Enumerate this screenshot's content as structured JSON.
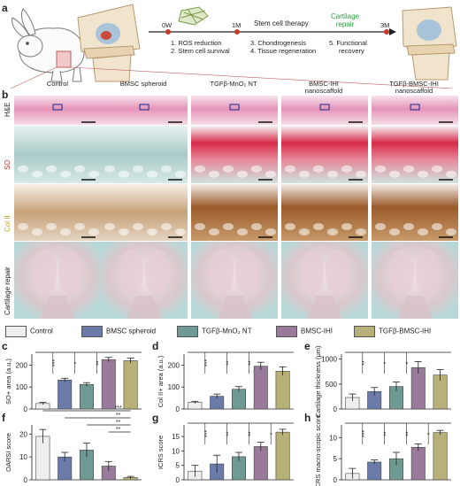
{
  "panels": {
    "a": "a",
    "b": "b",
    "c": "c",
    "d": "d",
    "e": "e",
    "f": "f",
    "g": "g",
    "h": "h"
  },
  "timeline": {
    "stem_cell_therapy": "Stem cell therapy",
    "cartilage_repair": "Cartilage\nrepair",
    "t0": "0W",
    "t1": "1M",
    "t3": "3M",
    "step1a": "1. ROS reduction",
    "step1b": "2. Stem cell survival",
    "step2a": "3. Chondrogenesis",
    "step2b": "4. Tissue regeneration",
    "step3a": "5. Functional",
    "step3b": "recovery",
    "accent_color": "#2a9d3a"
  },
  "columns": [
    "Control",
    "BMSC spheroid",
    "TGFβ-MnO₂ NT",
    "BMSC-IHI\nnanoscaffold",
    "TGFβ-BMSC-IHI\nnanoscaffold"
  ],
  "rows": [
    {
      "label": "H&E",
      "color": "#222222"
    },
    {
      "label": "SO",
      "color": "#d0302a"
    },
    {
      "label": "Col II",
      "color": "#c8a21a"
    },
    {
      "label": "Cartilage repair",
      "color": "#222222"
    }
  ],
  "legend": [
    {
      "label": "Control",
      "color": "#eeeeee"
    },
    {
      "label": "BMSC spheroid",
      "color": "#6b7aa8"
    },
    {
      "label": "TGFβ-MnO₂ NT",
      "color": "#6f9a94"
    },
    {
      "label": "BMSC-IHI",
      "color": "#9a7a9a"
    },
    {
      "label": "TGFβ-BMSC-IHI",
      "color": "#b7b078"
    }
  ],
  "chart_data": [
    {
      "panel": "c",
      "type": "bar",
      "ylabel": "SO+ area (a.u.)",
      "ylim": [
        0,
        250
      ],
      "yticks": [
        0,
        100,
        200
      ],
      "values": [
        25,
        132,
        112,
        225,
        220
      ],
      "errors": [
        5,
        8,
        8,
        10,
        12
      ],
      "sig": [
        {
          "from": 0,
          "to": 1,
          "label": "***"
        },
        {
          "from": 1,
          "to": 2,
          "label": "*"
        },
        {
          "from": 2,
          "to": 3,
          "label": "**"
        }
      ]
    },
    {
      "panel": "d",
      "type": "bar",
      "ylabel": "Col II+ area (a.u.)",
      "ylim": [
        0,
        250
      ],
      "yticks": [
        0,
        100,
        200
      ],
      "values": [
        30,
        58,
        90,
        195,
        172
      ],
      "errors": [
        5,
        10,
        12,
        18,
        20
      ],
      "sig": [
        {
          "from": 0,
          "to": 1,
          "label": "***"
        },
        {
          "from": 1,
          "to": 2,
          "label": "**"
        },
        {
          "from": 2,
          "to": 3,
          "label": "**"
        }
      ]
    },
    {
      "panel": "e",
      "type": "bar",
      "ylabel": "Cartilage thickness (μm)",
      "ylim": [
        0,
        1100
      ],
      "yticks": [
        0,
        500,
        1000
      ],
      "values": [
        230,
        350,
        450,
        830,
        680
      ],
      "errors": [
        70,
        80,
        90,
        120,
        110
      ],
      "sig": [
        {
          "from": 0,
          "to": 1,
          "label": "**"
        },
        {
          "from": 1,
          "to": 2,
          "label": "*"
        },
        {
          "from": 2,
          "to": 3,
          "label": "*"
        }
      ]
    },
    {
      "panel": "f",
      "type": "bar",
      "ylabel": "OARSI score",
      "ylim": [
        0,
        24
      ],
      "yticks": [
        0,
        10,
        20
      ],
      "values": [
        19,
        10,
        13,
        6,
        1
      ],
      "errors": [
        3,
        2,
        3,
        2,
        0.5
      ],
      "sig": [
        {
          "from": 0,
          "to": 4,
          "label": "***"
        },
        {
          "from": 1,
          "to": 4,
          "label": "**"
        },
        {
          "from": 2,
          "to": 4,
          "label": "**"
        },
        {
          "from": 3,
          "to": 4,
          "label": "**"
        }
      ]
    },
    {
      "panel": "g",
      "type": "bar",
      "ylabel": "ICRS score",
      "ylim": [
        0,
        19
      ],
      "yticks": [
        0,
        5,
        10,
        15
      ],
      "values": [
        3,
        5.5,
        8,
        11.5,
        16.5
      ],
      "errors": [
        2,
        3,
        1.5,
        1.5,
        1
      ],
      "sig": [
        {
          "from": 0,
          "to": 1,
          "label": "***"
        },
        {
          "from": 1,
          "to": 2,
          "label": "**"
        },
        {
          "from": 2,
          "to": 3,
          "label": "**"
        },
        {
          "from": 3,
          "to": 4,
          "label": "*"
        }
      ]
    },
    {
      "panel": "h",
      "type": "bar",
      "ylabel": "ICRS macro-scopic score",
      "ylim": [
        0,
        13
      ],
      "yticks": [
        0,
        5,
        10
      ],
      "values": [
        1.5,
        4.2,
        5,
        7.7,
        11.2
      ],
      "errors": [
        1.2,
        0.5,
        1.5,
        0.8,
        0.5
      ],
      "sig": [
        {
          "from": 0,
          "to": 1,
          "label": "***"
        },
        {
          "from": 1,
          "to": 2,
          "label": "**"
        },
        {
          "from": 2,
          "to": 3,
          "label": "**"
        },
        {
          "from": 3,
          "to": 4,
          "label": "*"
        }
      ]
    }
  ]
}
